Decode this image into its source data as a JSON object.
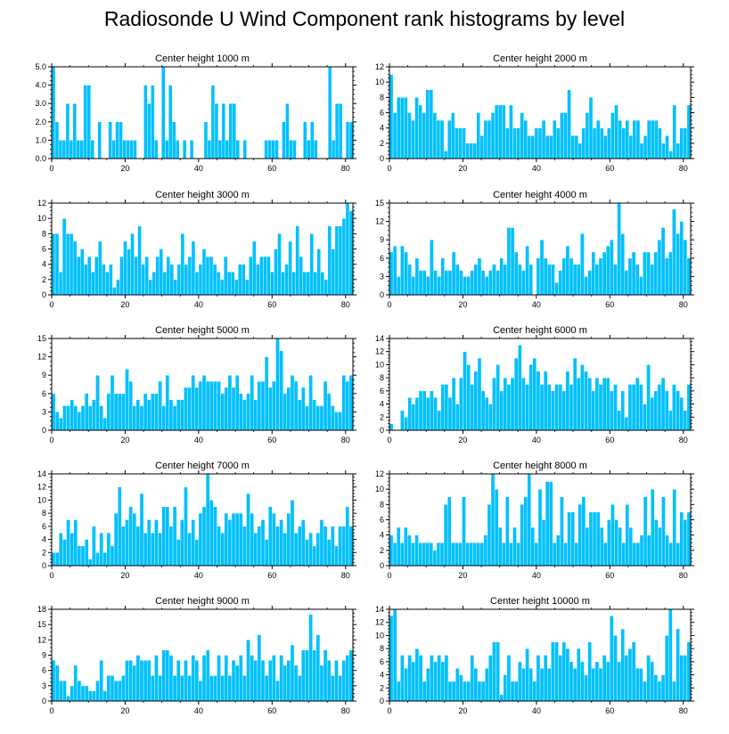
{
  "title": "Radiosonde U Wind Component rank histograms by level",
  "colors": {
    "bar": "#00C0FF",
    "bar_edge": "#ffffff",
    "axis": "#000000"
  },
  "chart_data": [
    {
      "type": "bar",
      "title": "Center height 1000 m",
      "xlim": [
        0,
        82
      ],
      "xticks": [
        0,
        20,
        40,
        60,
        80
      ],
      "ylim": [
        0,
        5.0
      ],
      "yticks": [
        0,
        1,
        2,
        3,
        4,
        5
      ],
      "ytick_labels": [
        "0.0",
        "1.0",
        "2.0",
        "3.0",
        "4.0",
        "5.0"
      ],
      "values": [
        5,
        2,
        1,
        1,
        3,
        1,
        3,
        1,
        1,
        4,
        4,
        1,
        0,
        2,
        0,
        0,
        2,
        1,
        2,
        2,
        1,
        1,
        1,
        1,
        0,
        0,
        4,
        3,
        4,
        1,
        0,
        5,
        1,
        4,
        2,
        1,
        0,
        1,
        0,
        1,
        0,
        0,
        0,
        2,
        1,
        4,
        3,
        1,
        3,
        1,
        3,
        3,
        1,
        0,
        1,
        0,
        0,
        0,
        0,
        0,
        1,
        1,
        1,
        1,
        0,
        2,
        3,
        1,
        1,
        0,
        0,
        2,
        1,
        2,
        1,
        0,
        0,
        0,
        5,
        1,
        3,
        3,
        0,
        2,
        2
      ]
    },
    {
      "type": "bar",
      "title": "Center height 2000 m",
      "xlim": [
        0,
        82
      ],
      "xticks": [
        0,
        20,
        40,
        60,
        80
      ],
      "ylim": [
        0,
        12
      ],
      "yticks": [
        0,
        2,
        4,
        6,
        8,
        10,
        12
      ],
      "ytick_labels": [
        "0",
        "2",
        "4",
        "6",
        "8",
        "10",
        "12"
      ],
      "values": [
        11,
        6,
        8,
        8,
        8,
        6,
        5,
        8,
        7,
        6,
        9,
        9,
        6,
        5,
        5,
        1,
        5,
        6,
        4,
        4,
        4,
        2,
        2,
        2,
        6,
        3,
        5,
        5,
        6,
        7,
        7,
        7,
        4,
        7,
        4,
        4,
        6,
        5,
        3,
        3,
        4,
        4,
        5,
        3,
        3,
        5,
        4,
        6,
        6,
        9,
        3,
        3,
        2,
        4,
        6,
        8,
        4,
        5,
        4,
        3,
        4,
        6,
        7,
        5,
        4,
        5,
        3,
        5,
        5,
        2,
        3,
        5,
        5,
        5,
        4,
        2,
        3,
        1,
        7,
        2,
        4,
        4,
        7
      ]
    },
    {
      "type": "bar",
      "title": "Center height 3000 m",
      "xlim": [
        0,
        82
      ],
      "xticks": [
        0,
        20,
        40,
        60,
        80
      ],
      "ylim": [
        0,
        12
      ],
      "yticks": [
        0,
        2,
        4,
        6,
        8,
        10,
        12
      ],
      "ytick_labels": [
        "0",
        "2",
        "4",
        "6",
        "8",
        "10",
        "12"
      ],
      "values": [
        8,
        8,
        3,
        10,
        8,
        8,
        7,
        5,
        6,
        4,
        5,
        3,
        5,
        7,
        4,
        3,
        4,
        1,
        2,
        5,
        7,
        6,
        8,
        5,
        9,
        4,
        5,
        2,
        3,
        5,
        6,
        3,
        5,
        4,
        2,
        4,
        8,
        4,
        5,
        7,
        3,
        4,
        6,
        5,
        5,
        4,
        3,
        2,
        5,
        3,
        3,
        2,
        4,
        4,
        2,
        5,
        7,
        4,
        5,
        5,
        5,
        3,
        6,
        8,
        3,
        4,
        7,
        3,
        9,
        5,
        3,
        3,
        8,
        3,
        6,
        3,
        2,
        9,
        6,
        9,
        9,
        10,
        12,
        11
      ]
    },
    {
      "type": "bar",
      "title": "Center height 4000 m",
      "xlim": [
        0,
        82
      ],
      "xticks": [
        0,
        20,
        40,
        60,
        80
      ],
      "ylim": [
        0,
        15
      ],
      "yticks": [
        0,
        3,
        6,
        9,
        12,
        15
      ],
      "ytick_labels": [
        "0",
        "3",
        "6",
        "9",
        "12",
        "15"
      ],
      "values": [
        7,
        8,
        3,
        8,
        7,
        5,
        3,
        6,
        4,
        4,
        3,
        9,
        4,
        3,
        6,
        4,
        4,
        7,
        5,
        4,
        3,
        3,
        4,
        5,
        6,
        4,
        3,
        4,
        5,
        4,
        6,
        5,
        11,
        11,
        7,
        5,
        4,
        8,
        5,
        0,
        6,
        9,
        6,
        5,
        5,
        2,
        4,
        6,
        8,
        6,
        5,
        5,
        10,
        3,
        4,
        7,
        5,
        6,
        7,
        8,
        9,
        5,
        15,
        10,
        4,
        6,
        7,
        5,
        3,
        7,
        7,
        5,
        7,
        9,
        11,
        6,
        7,
        14,
        10,
        12,
        9,
        6
      ]
    },
    {
      "type": "bar",
      "title": "Center height 5000 m",
      "xlim": [
        0,
        82
      ],
      "xticks": [
        0,
        20,
        40,
        60,
        80
      ],
      "ylim": [
        0,
        15
      ],
      "yticks": [
        0,
        3,
        6,
        9,
        12,
        15
      ],
      "ytick_labels": [
        "0",
        "3",
        "6",
        "9",
        "12",
        "15"
      ],
      "values": [
        6,
        3,
        2,
        4,
        4,
        5,
        4,
        3,
        4,
        6,
        4,
        5,
        9,
        4,
        2,
        6,
        9,
        6,
        6,
        6,
        10,
        8,
        4,
        5,
        4,
        6,
        5,
        6,
        6,
        8,
        4,
        9,
        5,
        4,
        5,
        5,
        7,
        7,
        9,
        7,
        8,
        9,
        8,
        8,
        8,
        8,
        6,
        7,
        9,
        7,
        9,
        6,
        5,
        6,
        9,
        5,
        8,
        8,
        12,
        7,
        8,
        15,
        13,
        6,
        7,
        9,
        8,
        5,
        7,
        4,
        9,
        5,
        4,
        4,
        8,
        6,
        4,
        3,
        3,
        9,
        8,
        9
      ]
    },
    {
      "type": "bar",
      "title": "Center height 6000 m",
      "xlim": [
        0,
        82
      ],
      "xticks": [
        0,
        20,
        40,
        60,
        80
      ],
      "ylim": [
        0,
        14
      ],
      "yticks": [
        0,
        2,
        4,
        6,
        8,
        10,
        12,
        14
      ],
      "ytick_labels": [
        "0",
        "2",
        "4",
        "6",
        "8",
        "10",
        "12",
        "14"
      ],
      "values": [
        1,
        0,
        0,
        3,
        2,
        5,
        4,
        5,
        6,
        6,
        5,
        6,
        5,
        3,
        7,
        7,
        5,
        8,
        4,
        8,
        12,
        10,
        7,
        9,
        11,
        6,
        5,
        4,
        8,
        10,
        6,
        8,
        7,
        8,
        11,
        13,
        8,
        7,
        10,
        11,
        9,
        7,
        9,
        7,
        6,
        7,
        7,
        6,
        9,
        7,
        11,
        8,
        10,
        9,
        8,
        6,
        8,
        7,
        8,
        8,
        6,
        7,
        3,
        6,
        2,
        7,
        7,
        8,
        7,
        4,
        10,
        5,
        6,
        7,
        8,
        6,
        3,
        7,
        6,
        5,
        3,
        7
      ]
    },
    {
      "type": "bar",
      "title": "Center height 7000 m",
      "xlim": [
        0,
        82
      ],
      "xticks": [
        0,
        20,
        40,
        60,
        80
      ],
      "ylim": [
        0,
        14
      ],
      "yticks": [
        0,
        2,
        4,
        6,
        8,
        10,
        12,
        14
      ],
      "ytick_labels": [
        "0",
        "2",
        "4",
        "6",
        "8",
        "10",
        "12",
        "14"
      ],
      "values": [
        2,
        2,
        5,
        4,
        7,
        5,
        7,
        3,
        3,
        4,
        1,
        6,
        2,
        5,
        2,
        5,
        3,
        8,
        12,
        6,
        7,
        9,
        8,
        6,
        11,
        5,
        7,
        5,
        7,
        5,
        9,
        9,
        6,
        9,
        4,
        7,
        12,
        5,
        7,
        4,
        8,
        9,
        14,
        10,
        9,
        6,
        5,
        8,
        7,
        8,
        8,
        8,
        6,
        11,
        8,
        5,
        6,
        7,
        4,
        9,
        8,
        6,
        7,
        5,
        8,
        10,
        5,
        6,
        7,
        4,
        5,
        3,
        5,
        7,
        6,
        4,
        6,
        3,
        6,
        6,
        9,
        6
      ]
    },
    {
      "type": "bar",
      "title": "Center height 8000 m",
      "xlim": [
        0,
        82
      ],
      "xticks": [
        0,
        20,
        40,
        60,
        80
      ],
      "ylim": [
        0,
        12
      ],
      "yticks": [
        0,
        2,
        4,
        6,
        8,
        10,
        12
      ],
      "ytick_labels": [
        "0",
        "2",
        "4",
        "6",
        "8",
        "10",
        "12"
      ],
      "values": [
        4,
        3,
        5,
        3,
        5,
        4,
        3,
        4,
        3,
        3,
        3,
        3,
        2,
        3,
        3,
        8,
        9,
        3,
        3,
        3,
        9,
        3,
        3,
        3,
        3,
        3,
        4,
        8,
        12,
        10,
        5,
        3,
        9,
        3,
        5,
        3,
        8,
        9,
        12,
        5,
        3,
        10,
        6,
        11,
        11,
        3,
        4,
        9,
        3,
        7,
        7,
        3,
        8,
        9,
        5,
        7,
        7,
        7,
        5,
        3,
        6,
        8,
        6,
        5,
        3,
        8,
        5,
        3,
        3,
        4,
        9,
        4,
        10,
        6,
        5,
        9,
        4,
        3,
        10,
        3,
        7,
        6,
        7
      ]
    },
    {
      "type": "bar",
      "title": "Center height 9000 m",
      "xlim": [
        0,
        82
      ],
      "xticks": [
        0,
        20,
        40,
        60,
        80
      ],
      "ylim": [
        0,
        18
      ],
      "yticks": [
        0,
        3,
        6,
        9,
        12,
        15,
        18
      ],
      "ytick_labels": [
        "0",
        "3",
        "6",
        "9",
        "12",
        "15",
        "18"
      ],
      "values": [
        8,
        7,
        4,
        4,
        1,
        3,
        7,
        4,
        3,
        3,
        2,
        2,
        4,
        8,
        2,
        5,
        5,
        4,
        4,
        5,
        8,
        8,
        7,
        9,
        8,
        8,
        8,
        5,
        9,
        5,
        10,
        10,
        9,
        5,
        8,
        5,
        8,
        5,
        9,
        8,
        4,
        9,
        10,
        5,
        5,
        9,
        5,
        9,
        5,
        8,
        7,
        9,
        5,
        12,
        9,
        8,
        13,
        8,
        5,
        8,
        9,
        4,
        9,
        7,
        8,
        11,
        7,
        5,
        10,
        10,
        17,
        10,
        13,
        7,
        10,
        8,
        5,
        8,
        5,
        8,
        9,
        10
      ]
    },
    {
      "type": "bar",
      "title": "Center height 10000 m",
      "xlim": [
        0,
        82
      ],
      "xticks": [
        0,
        20,
        40,
        60,
        80
      ],
      "ylim": [
        0,
        14
      ],
      "yticks": [
        0,
        2,
        4,
        6,
        8,
        10,
        12,
        14
      ],
      "ytick_labels": [
        "0",
        "2",
        "4",
        "6",
        "8",
        "10",
        "12",
        "14"
      ],
      "values": [
        13,
        14,
        3,
        7,
        5,
        7,
        6,
        8,
        7,
        3,
        5,
        7,
        6,
        7,
        6,
        7,
        3,
        3,
        5,
        4,
        3,
        3,
        7,
        5,
        3,
        3,
        5,
        7,
        9,
        9,
        1,
        4,
        7,
        3,
        3,
        6,
        5,
        8,
        5,
        3,
        7,
        5,
        7,
        5,
        9,
        9,
        7,
        9,
        8,
        6,
        5,
        8,
        6,
        4,
        9,
        5,
        6,
        5,
        7,
        6,
        13,
        10,
        6,
        11,
        7,
        8,
        9,
        5,
        5,
        3,
        7,
        6,
        4,
        3,
        4,
        10,
        14,
        3,
        11,
        7,
        7,
        9
      ]
    }
  ]
}
